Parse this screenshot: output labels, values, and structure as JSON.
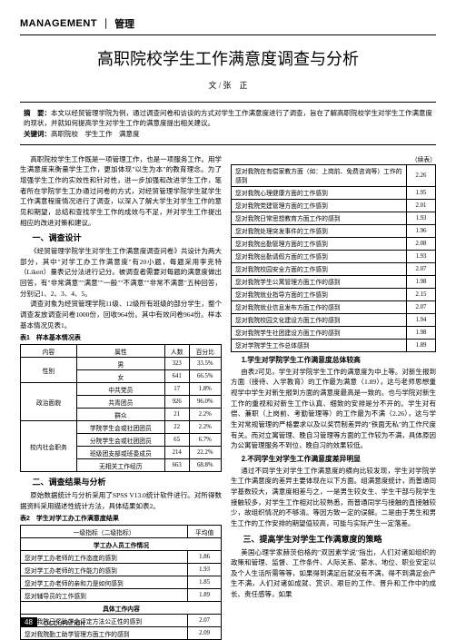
{
  "header": {
    "en": "MANAGEMENT",
    "cn": "管理"
  },
  "title": "高职院校学生工作满意度调查与分析",
  "author_prefix": "文 /",
  "author": "张　正",
  "abstract": {
    "label1": "摘　要：",
    "text1": "本文以经贸管理学院为例，通过调查问卷和访谈的方式对学生工作满意度进行了调查，旨在了解高职院校学生对学生工作满意度的现状，并就如何提高学生对学生工作的满意度提出相关建议。",
    "label2": "关键词：",
    "text2": "高职院校　学生工作　满意度"
  },
  "left": {
    "p1": "高职院校学生工作既是一项管理工作，也是一项服务工作。用学生满意度来衡量学生工作，更加体现\"以生为本\"的教育理念。为了增强学生工作的实效性和针对性，进一步加强和改进学生工作，笔者所在学院学生工办通过问卷的方式，对经贸管理学院学生就学生工作满意程度情况进行了调查，以深入了解大学生对学生工作的意见和期望，总结和查找学生工作的成效与不足，并对学生工作提出相应的改进对策和建议。",
    "s1": "一、调查设计",
    "p2": "《经贸管理学院学生对学生工作满意度调查问卷》共设计为两大部分，其中\"对学工办工作满意度\"有20小题，每题采用李克特（Likert）量表记分法进行记分。被调查者需要对每题的满意度做出回答，有\"非常满意\"\"满意\"\"一般\"\"不满意\"\"非常不满意\"五种回答，分别记1、2、3、4、5。",
    "p3": "调查对象为经贸管理学院11级、12级所有班级的部分学生，整个调查发放调查问卷1000份，回收964份。其中有效问卷964份。样本基本情况见表1。",
    "t1_caption": "表1　样本基本情况表",
    "table1": {
      "headers": [
        "内容",
        "属性",
        "人数",
        "百分比"
      ],
      "rows": [
        {
          "cat": "性别",
          "rows": [
            [
              "男",
              "323",
              "33.5%"
            ],
            [
              "女",
              "641",
              "66.5%"
            ]
          ]
        },
        {
          "cat": "政治面貌",
          "rows": [
            [
              "中共党员",
              "17",
              "1.8%"
            ],
            [
              "共青团员",
              "926",
              "96.0%"
            ],
            [
              "群众",
              "21",
              "2.2%"
            ]
          ]
        },
        {
          "cat": "校内社会职务",
          "rows": [
            [
              "学院学生会或社团团员",
              "22",
              "2.2%"
            ],
            [
              "分院学生会或社团团员",
              "65",
              "6.7%"
            ],
            [
              "班级团支部或班委成员",
              "214",
              "22.2%"
            ],
            [
              "无相关工作经历",
              "663",
              "68.8%"
            ]
          ]
        }
      ]
    },
    "s2": "二、调查结果与分析",
    "p4": "原始数据统计与分析采用了SPSS V13.0统计软件进行。对所得数据资料采用描述性统计方法，具体结果如表2。",
    "t2_caption": "表2　学生对学工办工作满意度结果",
    "table2": {
      "headers": [
        "一级指标（二级指标）",
        "平均值"
      ],
      "section_header": "学工办人员工作情况",
      "rows": [
        [
          "您对学工办老师的工作态度的感到",
          "1.86"
        ],
        [
          "您对学工办老师的工作能力的感到",
          "1.93"
        ],
        [
          "您对学工办老师的亲和力是如何感到",
          "1.85"
        ],
        [
          "您对辅导员的工作感到",
          "1.89"
        ],
        "具体工作内容",
        [
          "您对我院已奖助学金评定方法公正性的感到",
          "2.07"
        ],
        [
          "您对我院勤工助学管理方面工作的感到",
          "2.09"
        ]
      ]
    }
  },
  "right": {
    "continued": "（续表）",
    "table3": {
      "rows": [
        [
          "您对我院在有偿家教方面（如：上岗前、免费咨询等）工作的感到",
          "2.26"
        ],
        [
          "您对我院心理健康方面的工作感到",
          "1.95"
        ],
        [
          "您对我院党建管理方面的工作感到",
          "2.01"
        ],
        [
          "您对我院日常思想教育方面工作的感到",
          "1.93"
        ],
        [
          "您对我院处理突发事件的工作感到",
          "1.96"
        ],
        [
          "您对我院出勤管理方面的工作感到",
          "2.08"
        ],
        [
          "您对我院出勤请假方面的工作感到",
          "1.93"
        ],
        [
          "您对我院校园安全方面的工作感到",
          "2.07"
        ],
        [
          "您对我院学生公寓管理方面工作的感到",
          "1.98"
        ],
        [
          "您对我院就业指导方面的工作感到",
          "2.15"
        ],
        [
          "您对我院就业信息发布方面工作的感到",
          "2.07"
        ],
        [
          "您对我院校园文化建设方面工作的感到",
          "1.94"
        ],
        [
          "您对我院学生社团建设方面工作的感到",
          "1.98"
        ],
        [
          "您对学院学生工作总体感到",
          "1.89"
        ]
      ]
    },
    "h1": "1.学生对学院学生工作满意度总体较高",
    "p1": "由表2可见，学生对学院学生工作的满意度为中上等。对新生报到方面（接待、入学教育）的工作最为满意（1.89），这与老师思想重视学中学生对新生报到方面的满意度最高是一致的。也与学院对新生工作的重视和对新生工作认真、细致的安排是分不开的。学生对有偿、兼职（上岗前、考勤管理等）的工作最为不满（2.26），这与学生对常规管理的严格要求以及以奖罚制差异的\"铁面无私\"的工作尺度有关。而对立寓管理、晚自习管理等方面的工作较为不满，具体原因为公寓管理服务不到位，晚自习的效果较低。",
    "h2": "2.不同学生对学生工作满意度差异明显",
    "p2": "通过不同学生对学生工作满意度的横向比较发现，学生对学院学生工作满意度的差异主要体现在以下方面。组满意度统计，而普通同学基数较大，满意度相差与之，一是男生较女生、学生干部与院学生接触较多，对学生工作相对比较熟悉，而普通同学与接触的直接触较少，故组织情况的不够清。等因方致一定的误解。二是由于男生和男生工作的工作安排的期望值较高，可能与实际产生一定落差。",
    "s3": "三、提高学生对学生工作满意度的策略",
    "p3": "美国心理学家赫茨伯格的\"双因素学说\"指出，人们对诸如组织的政策和管理、监督、工作条件、人际关系、薪水、地位、职业安定以及个人生活所需等等，如果得到满足后就没有不满，得不到满足会产生不满，人们对诸如成就、赏识、艰巨的工作、晋升和工作中的成长、责任感等，如果"
  },
  "page_num": "48",
  "page_label": "OCCUPATION"
}
